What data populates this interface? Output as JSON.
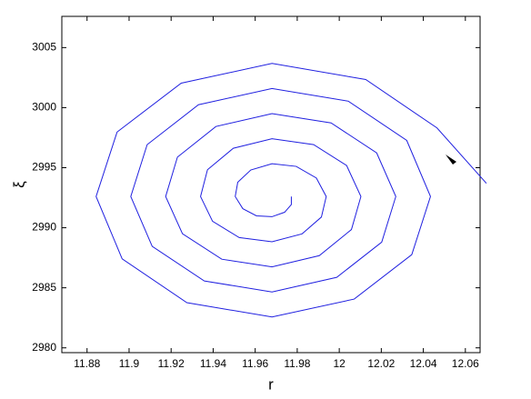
{
  "chart_data": {
    "type": "line",
    "xlabel": "r",
    "ylabel": "ξ",
    "xlim": [
      11.868,
      12.067
    ],
    "ylim": [
      2979.6,
      3007.6
    ],
    "xticks": [
      11.88,
      11.9,
      11.92,
      11.94,
      11.96,
      11.98,
      12,
      12.02,
      12.04,
      12.06
    ],
    "yticks": [
      2980,
      2985,
      2990,
      2995,
      3000,
      3005
    ],
    "grid": false,
    "series": [
      {
        "color": "#1f1fe0",
        "x": [
          12.07,
          12.0465,
          12.0126,
          11.968,
          11.9248,
          11.8943,
          11.8843,
          11.8967,
          11.9275,
          11.968,
          12.0071,
          12.0345,
          12.0434,
          12.0321,
          12.0043,
          11.968,
          11.933,
          11.9086,
          11.9008,
          11.911,
          11.9358,
          11.968,
          11.9988,
          12.0202,
          12.0269,
          12.0178,
          11.9961,
          11.968,
          11.9413,
          11.923,
          11.9174,
          11.9254,
          11.9441,
          11.968,
          11.9905,
          12.0058,
          12.0103,
          12.0035,
          11.9878,
          11.968,
          11.9496,
          11.9373,
          11.934,
          11.9397,
          11.9524,
          11.968,
          11.9823,
          11.9915,
          11.9938,
          11.9891,
          11.9795,
          11.968,
          11.9579,
          11.9517,
          11.9505,
          11.9541,
          11.9606,
          11.968,
          11.974,
          11.9772,
          11.9772
        ],
        "y": [
          2993.7,
          2998.31,
          3002.34,
          3003.68,
          3002.04,
          2997.97,
          2992.6,
          2987.41,
          2983.76,
          2982.57,
          2984.06,
          2987.76,
          2992.6,
          2997.27,
          3000.54,
          3001.59,
          3000.24,
          2996.92,
          2992.6,
          2988.45,
          2985.57,
          2984.65,
          2985.87,
          2988.8,
          2992.6,
          2996.23,
          2998.73,
          2999.5,
          2998.43,
          2995.88,
          2992.6,
          2989.5,
          2987.38,
          2986.74,
          2987.68,
          2989.85,
          2992.6,
          2995.18,
          2996.92,
          2997.41,
          2996.62,
          2994.83,
          2992.6,
          2990.54,
          2989.18,
          2988.83,
          2989.49,
          2990.89,
          2992.6,
          2994.14,
          2995.11,
          2995.33,
          2994.81,
          2993.79,
          2992.6,
          2991.59,
          2990.99,
          2990.92,
          2991.29,
          2991.93,
          2992.6
        ]
      }
    ]
  }
}
